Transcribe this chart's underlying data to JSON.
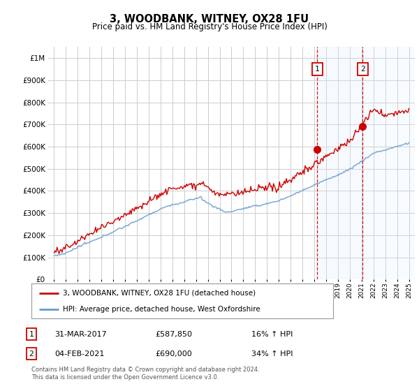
{
  "title": "3, WOODBANK, WITNEY, OX28 1FU",
  "subtitle": "Price paid vs. HM Land Registry's House Price Index (HPI)",
  "legend_line1": "3, WOODBANK, WITNEY, OX28 1FU (detached house)",
  "legend_line2": "HPI: Average price, detached house, West Oxfordshire",
  "sale1_date": "31-MAR-2017",
  "sale1_price": "£587,850",
  "sale1_hpi": "16% ↑ HPI",
  "sale1_year": 2017.25,
  "sale1_price_val": 587850,
  "sale2_date": "04-FEB-2021",
  "sale2_price": "£690,000",
  "sale2_hpi": "34% ↑ HPI",
  "sale2_year": 2021.09,
  "sale2_price_val": 690000,
  "footer": "Contains HM Land Registry data © Crown copyright and database right 2024.\nThis data is licensed under the Open Government Licence v3.0.",
  "line_color_red": "#cc0000",
  "line_color_blue": "#6699cc",
  "marker_color": "#cc0000",
  "dashed_color": "#cc0000",
  "background_color": "#ffffff",
  "grid_color": "#cccccc",
  "shade_color": "#ddeeff",
  "ylim_max": 1000000,
  "xlim_start": 1994.5,
  "xlim_end": 2025.5
}
